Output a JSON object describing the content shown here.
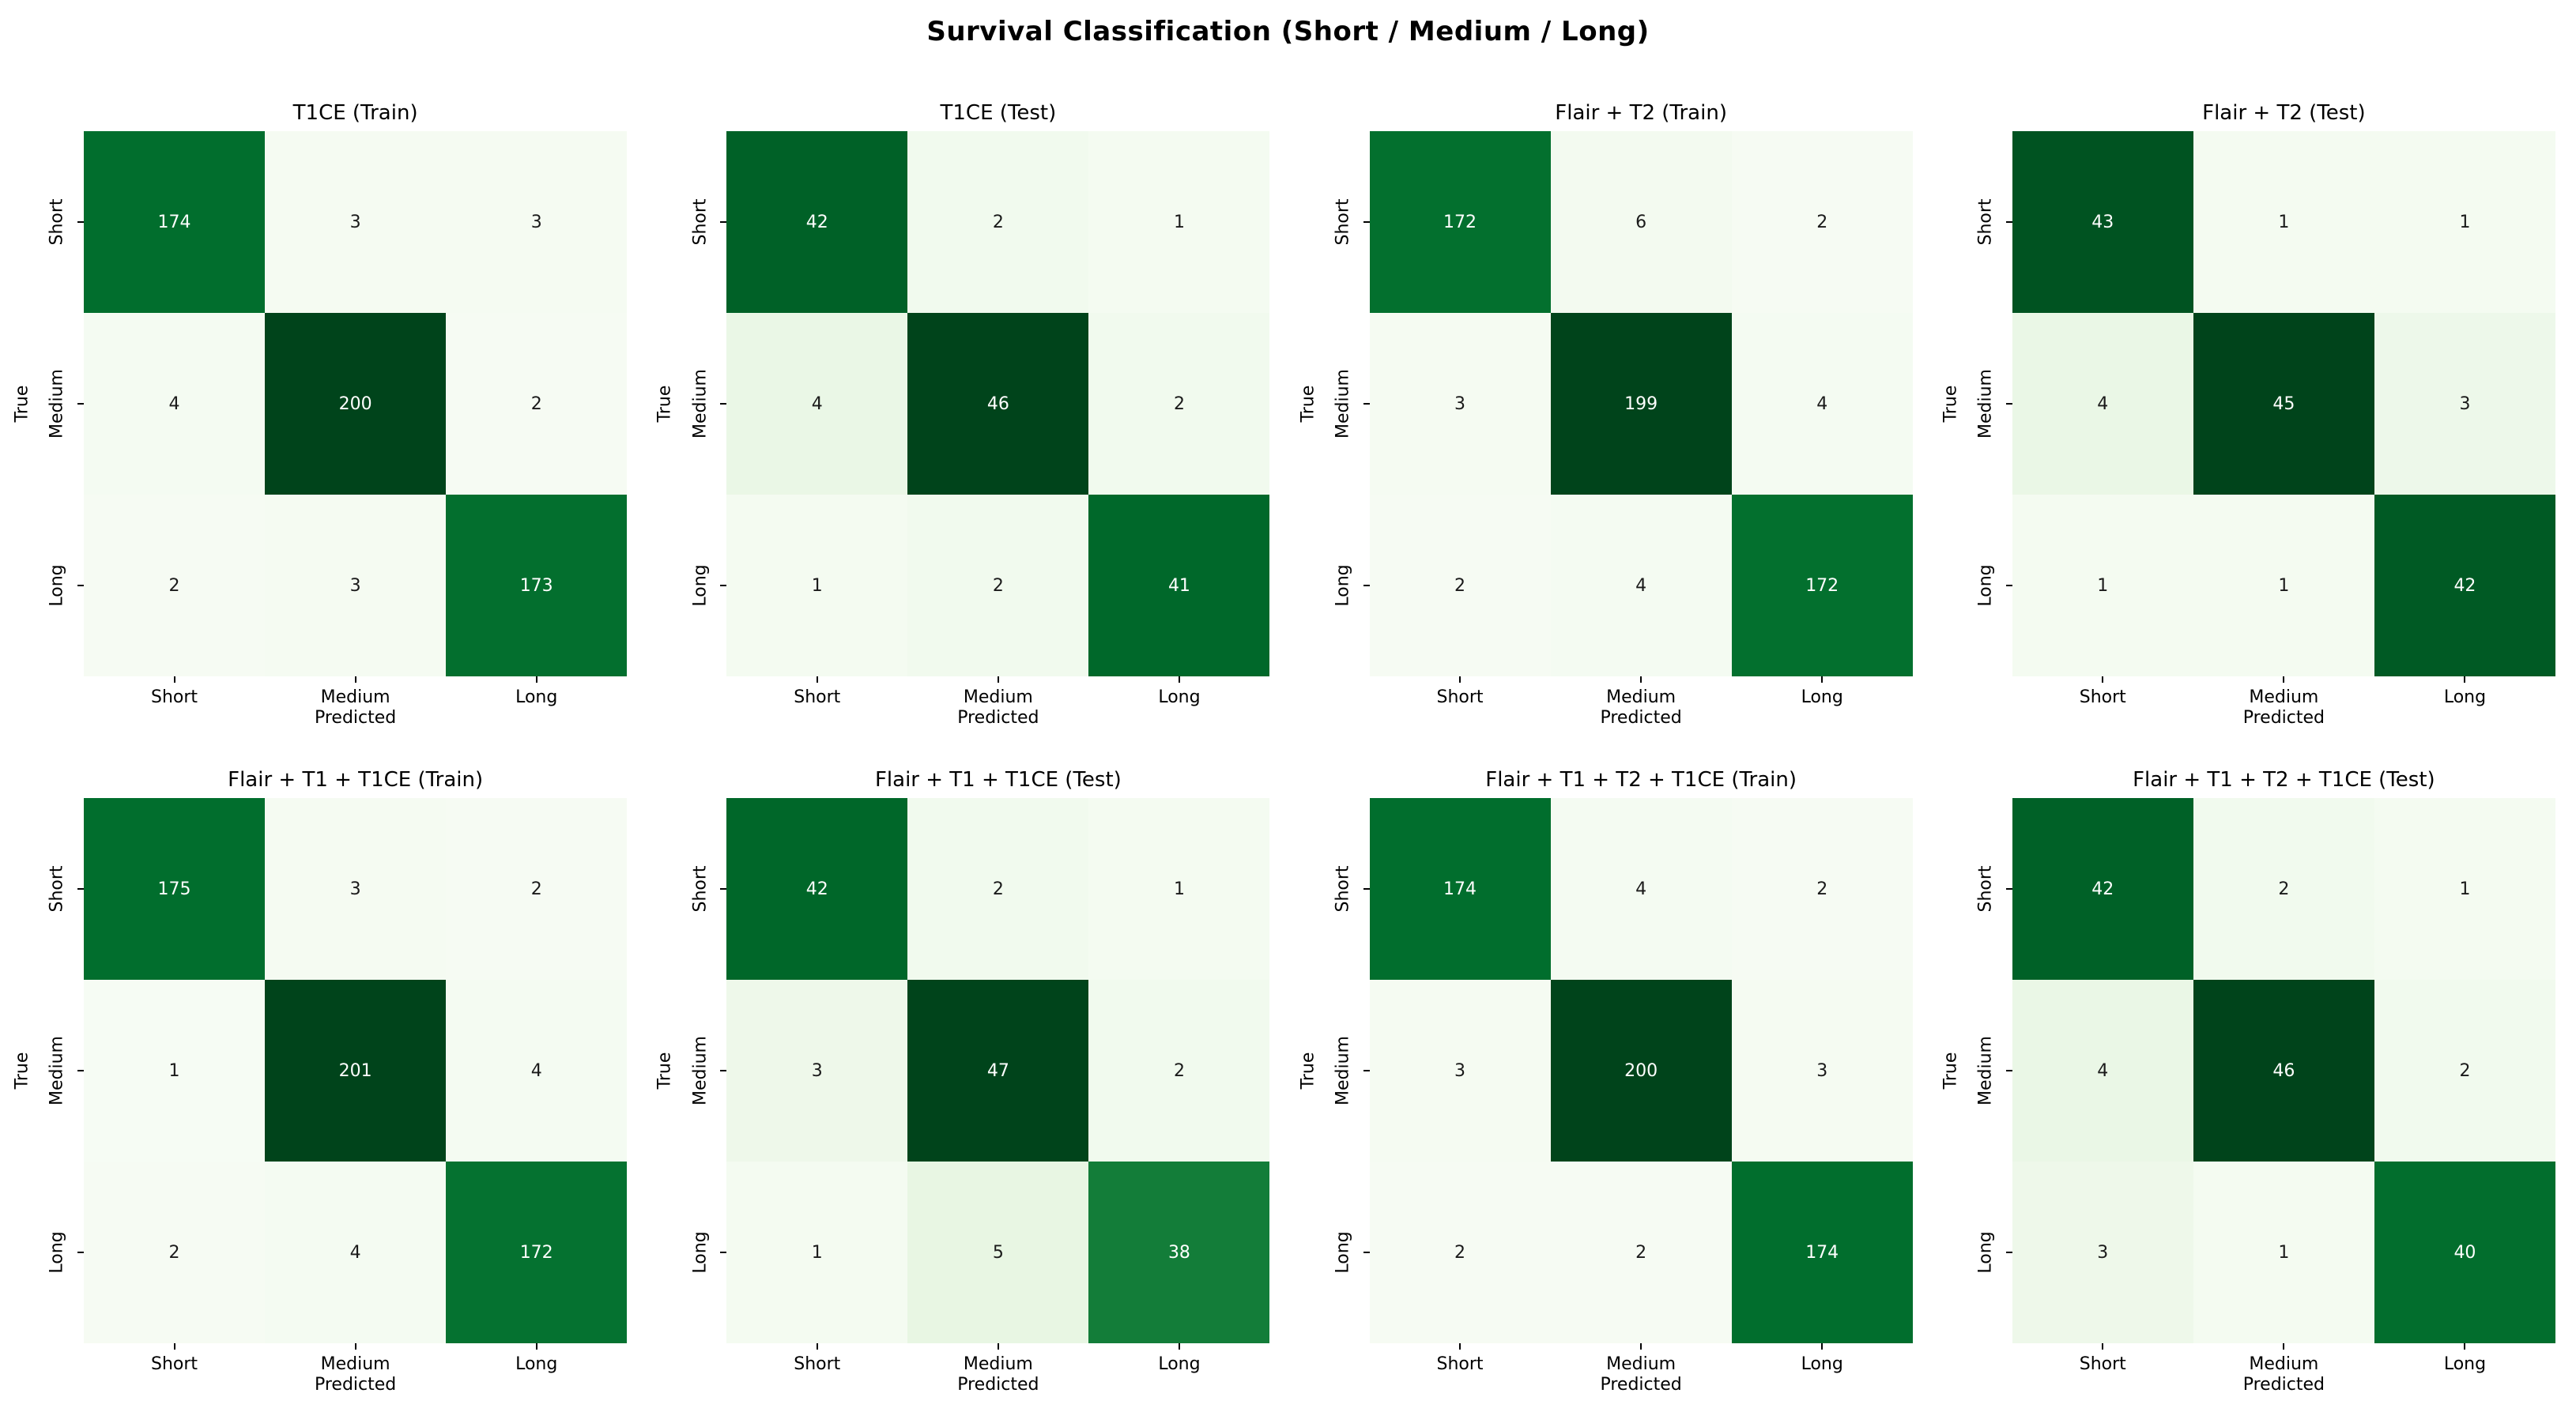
{
  "figure": {
    "title": "Survival Classification (Short / Medium / Long)"
  },
  "colors": {
    "background": "#ffffff",
    "text": "#000000",
    "annotation_on_dark": "#ffffff",
    "annotation_on_light": "#1a1a1a",
    "colormap_name": "Greens",
    "colormap_greens": [
      "#f7fcf5",
      "#e5f5e0",
      "#c7e9c0",
      "#a1d99b",
      "#74c476",
      "#41ab5d",
      "#238b45",
      "#006d2c",
      "#00441b"
    ]
  },
  "chart_data": [
    {
      "type": "heatmap",
      "title": "T1CE (Train)",
      "xlabel": "Predicted",
      "ylabel": "True",
      "categories": [
        "Short",
        "Medium",
        "Long"
      ],
      "matrix": [
        [
          174,
          3,
          3
        ],
        [
          4,
          200,
          2
        ],
        [
          2,
          3,
          173
        ]
      ]
    },
    {
      "type": "heatmap",
      "title": "T1CE (Test)",
      "xlabel": "Predicted",
      "ylabel": "True",
      "categories": [
        "Short",
        "Medium",
        "Long"
      ],
      "matrix": [
        [
          42,
          2,
          1
        ],
        [
          4,
          46,
          2
        ],
        [
          1,
          2,
          41
        ]
      ]
    },
    {
      "type": "heatmap",
      "title": "Flair + T2 (Train)",
      "xlabel": "Predicted",
      "ylabel": "True",
      "categories": [
        "Short",
        "Medium",
        "Long"
      ],
      "matrix": [
        [
          172,
          6,
          2
        ],
        [
          3,
          199,
          4
        ],
        [
          2,
          4,
          172
        ]
      ]
    },
    {
      "type": "heatmap",
      "title": "Flair + T2 (Test)",
      "xlabel": "Predicted",
      "ylabel": "True",
      "categories": [
        "Short",
        "Medium",
        "Long"
      ],
      "matrix": [
        [
          43,
          1,
          1
        ],
        [
          4,
          45,
          3
        ],
        [
          1,
          1,
          42
        ]
      ]
    },
    {
      "type": "heatmap",
      "title": "Flair + T1 + T1CE (Train)",
      "xlabel": "Predicted",
      "ylabel": "True",
      "categories": [
        "Short",
        "Medium",
        "Long"
      ],
      "matrix": [
        [
          175,
          3,
          2
        ],
        [
          1,
          201,
          4
        ],
        [
          2,
          4,
          172
        ]
      ]
    },
    {
      "type": "heatmap",
      "title": "Flair + T1 + T1CE (Test)",
      "xlabel": "Predicted",
      "ylabel": "True",
      "categories": [
        "Short",
        "Medium",
        "Long"
      ],
      "matrix": [
        [
          42,
          2,
          1
        ],
        [
          3,
          47,
          2
        ],
        [
          1,
          5,
          38
        ]
      ]
    },
    {
      "type": "heatmap",
      "title": "Flair + T1 + T2 + T1CE (Train)",
      "xlabel": "Predicted",
      "ylabel": "True",
      "categories": [
        "Short",
        "Medium",
        "Long"
      ],
      "matrix": [
        [
          174,
          4,
          2
        ],
        [
          3,
          200,
          3
        ],
        [
          2,
          2,
          174
        ]
      ]
    },
    {
      "type": "heatmap",
      "title": "Flair + T1 + T2 + T1CE (Test)",
      "xlabel": "Predicted",
      "ylabel": "True",
      "categories": [
        "Short",
        "Medium",
        "Long"
      ],
      "matrix": [
        [
          42,
          2,
          1
        ],
        [
          4,
          46,
          2
        ],
        [
          3,
          1,
          40
        ]
      ]
    }
  ]
}
